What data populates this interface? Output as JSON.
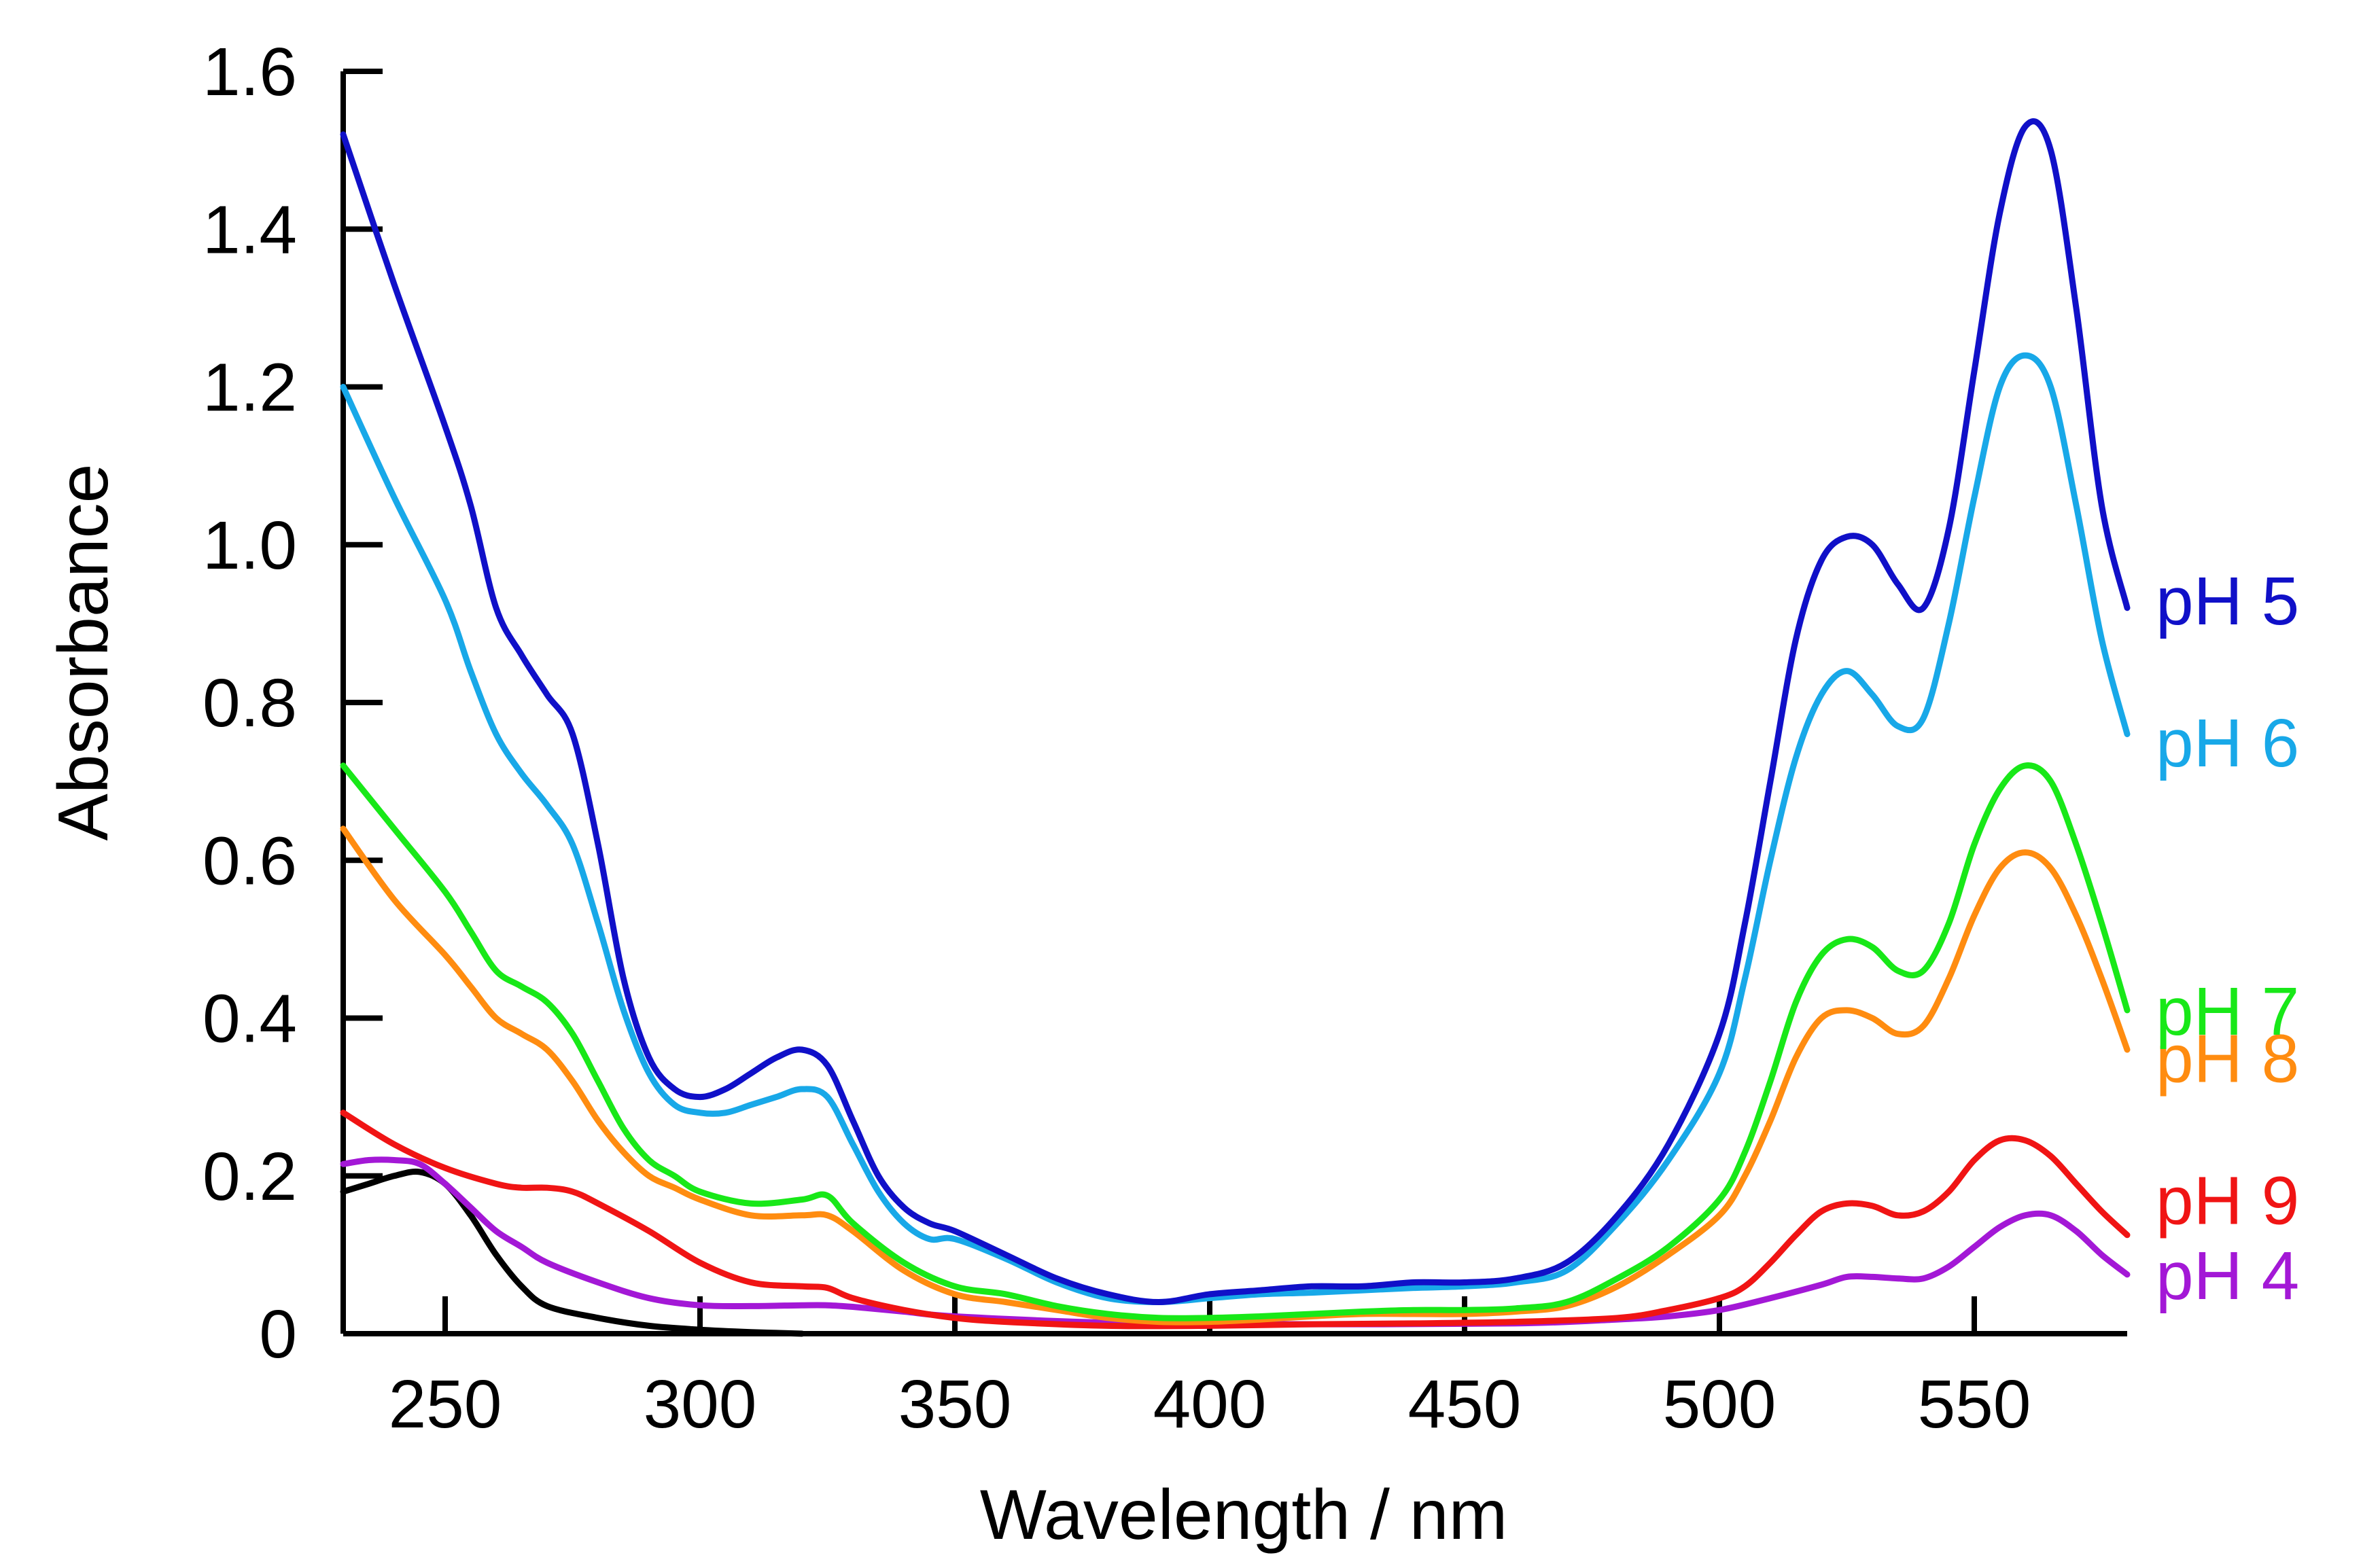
{
  "chart_data": {
    "type": "line",
    "title": "",
    "xlabel": "Wavelength / nm",
    "ylabel": "Absorbance",
    "xlim": [
      230,
      580
    ],
    "ylim": [
      0,
      1.6
    ],
    "x_ticks": [
      {
        "value": 250,
        "label": "250"
      },
      {
        "value": 300,
        "label": "300"
      },
      {
        "value": 350,
        "label": "350"
      },
      {
        "value": 400,
        "label": "400"
      },
      {
        "value": 450,
        "label": "450"
      },
      {
        "value": 500,
        "label": "500"
      },
      {
        "value": 550,
        "label": "550"
      }
    ],
    "y_ticks": [
      {
        "value": 0,
        "label": "0"
      },
      {
        "value": 0.2,
        "label": "0.2"
      },
      {
        "value": 0.4,
        "label": "0.4"
      },
      {
        "value": 0.6,
        "label": "0.6"
      },
      {
        "value": 0.8,
        "label": "0.8"
      },
      {
        "value": 1.0,
        "label": "1.0"
      },
      {
        "value": 1.2,
        "label": "1.2"
      },
      {
        "value": 1.4,
        "label": "1.4"
      },
      {
        "value": 1.6,
        "label": "1.6"
      }
    ],
    "grid": false,
    "legend": "inline labels at right end of curves",
    "series": [
      {
        "name": "pH 5",
        "label": "pH 5",
        "color": "#1010C8",
        "label_value": 0.93,
        "x": [
          230,
          240,
          250,
          255,
          260,
          265,
          270,
          275,
          280,
          285,
          290,
          295,
          300,
          305,
          310,
          315,
          320,
          325,
          330,
          335,
          340,
          345,
          350,
          360,
          370,
          380,
          390,
          400,
          410,
          420,
          430,
          440,
          450,
          460,
          470,
          480,
          490,
          500,
          505,
          510,
          515,
          520,
          525,
          530,
          535,
          540,
          545,
          550,
          555,
          560,
          565,
          570,
          575,
          580
        ],
        "y": [
          1.52,
          1.33,
          1.15,
          1.05,
          0.92,
          0.86,
          0.81,
          0.76,
          0.62,
          0.45,
          0.35,
          0.31,
          0.3,
          0.31,
          0.33,
          0.35,
          0.36,
          0.34,
          0.27,
          0.2,
          0.16,
          0.14,
          0.13,
          0.1,
          0.07,
          0.05,
          0.04,
          0.05,
          0.055,
          0.06,
          0.06,
          0.065,
          0.065,
          0.07,
          0.09,
          0.15,
          0.24,
          0.38,
          0.52,
          0.7,
          0.88,
          0.98,
          1.01,
          1.0,
          0.95,
          0.92,
          1.02,
          1.22,
          1.42,
          1.53,
          1.5,
          1.3,
          1.05,
          0.92
        ]
      },
      {
        "name": "pH 6",
        "label": "pH 6",
        "color": "#18A8E8",
        "label_value": 0.75,
        "x": [
          230,
          240,
          250,
          255,
          260,
          265,
          270,
          275,
          280,
          285,
          290,
          295,
          300,
          305,
          310,
          315,
          320,
          325,
          330,
          335,
          340,
          345,
          350,
          360,
          370,
          380,
          390,
          400,
          410,
          420,
          430,
          440,
          450,
          460,
          470,
          480,
          490,
          500,
          505,
          510,
          515,
          520,
          525,
          530,
          535,
          540,
          545,
          550,
          555,
          560,
          565,
          570,
          575,
          580
        ],
        "y": [
          1.2,
          1.06,
          0.93,
          0.84,
          0.76,
          0.71,
          0.67,
          0.62,
          0.52,
          0.41,
          0.33,
          0.29,
          0.28,
          0.28,
          0.29,
          0.3,
          0.31,
          0.3,
          0.24,
          0.18,
          0.14,
          0.12,
          0.12,
          0.095,
          0.065,
          0.045,
          0.04,
          0.045,
          0.05,
          0.052,
          0.055,
          0.058,
          0.06,
          0.065,
          0.08,
          0.14,
          0.22,
          0.33,
          0.45,
          0.6,
          0.73,
          0.81,
          0.84,
          0.81,
          0.77,
          0.78,
          0.9,
          1.06,
          1.2,
          1.24,
          1.2,
          1.05,
          0.88,
          0.76
        ]
      },
      {
        "name": "pH 7",
        "label": "pH 7",
        "color": "#18E818",
        "label_value": 0.41,
        "x": [
          230,
          240,
          250,
          255,
          260,
          265,
          270,
          275,
          280,
          285,
          290,
          295,
          300,
          310,
          320,
          325,
          330,
          340,
          350,
          360,
          370,
          380,
          390,
          400,
          410,
          420,
          430,
          440,
          450,
          460,
          470,
          480,
          490,
          500,
          505,
          510,
          515,
          520,
          525,
          530,
          535,
          540,
          545,
          550,
          555,
          560,
          565,
          570,
          575,
          580
        ],
        "y": [
          0.72,
          0.64,
          0.56,
          0.51,
          0.46,
          0.44,
          0.42,
          0.38,
          0.32,
          0.26,
          0.22,
          0.2,
          0.18,
          0.165,
          0.17,
          0.175,
          0.14,
          0.09,
          0.06,
          0.05,
          0.035,
          0.025,
          0.02,
          0.02,
          0.022,
          0.025,
          0.028,
          0.03,
          0.03,
          0.032,
          0.04,
          0.07,
          0.11,
          0.17,
          0.23,
          0.32,
          0.42,
          0.48,
          0.5,
          0.49,
          0.46,
          0.46,
          0.52,
          0.62,
          0.69,
          0.72,
          0.7,
          0.62,
          0.52,
          0.41
        ]
      },
      {
        "name": "pH 8",
        "label": "pH 8",
        "color": "#FF8C10",
        "label_value": 0.35,
        "x": [
          230,
          240,
          250,
          255,
          260,
          265,
          270,
          275,
          280,
          285,
          290,
          295,
          300,
          310,
          320,
          325,
          330,
          340,
          350,
          360,
          370,
          380,
          390,
          400,
          410,
          420,
          430,
          440,
          450,
          460,
          470,
          480,
          490,
          500,
          505,
          510,
          515,
          520,
          525,
          530,
          535,
          540,
          545,
          550,
          555,
          560,
          565,
          570,
          575,
          580
        ],
        "y": [
          0.64,
          0.55,
          0.48,
          0.44,
          0.4,
          0.38,
          0.36,
          0.32,
          0.27,
          0.23,
          0.2,
          0.185,
          0.17,
          0.15,
          0.15,
          0.15,
          0.13,
          0.08,
          0.05,
          0.04,
          0.03,
          0.02,
          0.015,
          0.015,
          0.018,
          0.022,
          0.025,
          0.025,
          0.025,
          0.028,
          0.035,
          0.06,
          0.1,
          0.15,
          0.2,
          0.27,
          0.35,
          0.4,
          0.41,
          0.4,
          0.38,
          0.39,
          0.45,
          0.53,
          0.59,
          0.61,
          0.59,
          0.53,
          0.45,
          0.36
        ]
      },
      {
        "name": "pH 9",
        "label": "pH 9",
        "color": "#F01414",
        "label_value": 0.17,
        "x": [
          230,
          240,
          250,
          260,
          265,
          270,
          275,
          280,
          290,
          300,
          310,
          320,
          325,
          330,
          340,
          350,
          360,
          380,
          400,
          420,
          440,
          460,
          480,
          490,
          500,
          505,
          510,
          515,
          520,
          525,
          530,
          535,
          540,
          545,
          550,
          555,
          560,
          565,
          570,
          575,
          580
        ],
        "y": [
          0.28,
          0.24,
          0.21,
          0.19,
          0.185,
          0.185,
          0.18,
          0.165,
          0.13,
          0.09,
          0.065,
          0.06,
          0.058,
          0.045,
          0.03,
          0.02,
          0.015,
          0.01,
          0.01,
          0.012,
          0.013,
          0.015,
          0.02,
          0.03,
          0.045,
          0.06,
          0.09,
          0.125,
          0.155,
          0.165,
          0.162,
          0.15,
          0.155,
          0.18,
          0.22,
          0.245,
          0.245,
          0.225,
          0.19,
          0.155,
          0.125
        ]
      },
      {
        "name": "pH 4",
        "label": "pH 4",
        "color": "#A318D6",
        "label_value": 0.075,
        "x": [
          230,
          235,
          240,
          245,
          250,
          255,
          260,
          265,
          270,
          280,
          290,
          300,
          310,
          320,
          325,
          330,
          340,
          350,
          380,
          420,
          460,
          480,
          490,
          500,
          510,
          520,
          525,
          530,
          535,
          540,
          545,
          550,
          555,
          560,
          565,
          570,
          575,
          580
        ],
        "y": [
          0.215,
          0.22,
          0.22,
          0.215,
          0.19,
          0.16,
          0.13,
          0.11,
          0.09,
          0.065,
          0.045,
          0.036,
          0.035,
          0.036,
          0.036,
          0.034,
          0.028,
          0.022,
          0.014,
          0.012,
          0.013,
          0.018,
          0.022,
          0.03,
          0.045,
          0.062,
          0.072,
          0.072,
          0.07,
          0.07,
          0.085,
          0.11,
          0.135,
          0.15,
          0.15,
          0.13,
          0.1,
          0.075
        ]
      },
      {
        "name": "unlabeled",
        "label": "",
        "color": "#000000",
        "x": [
          230,
          235,
          240,
          245,
          250,
          255,
          260,
          265,
          270,
          280,
          290,
          300,
          310,
          320
        ],
        "y": [
          0.18,
          0.19,
          0.2,
          0.205,
          0.19,
          0.15,
          0.1,
          0.06,
          0.035,
          0.02,
          0.01,
          0.005,
          0.002,
          0.0
        ]
      }
    ]
  }
}
